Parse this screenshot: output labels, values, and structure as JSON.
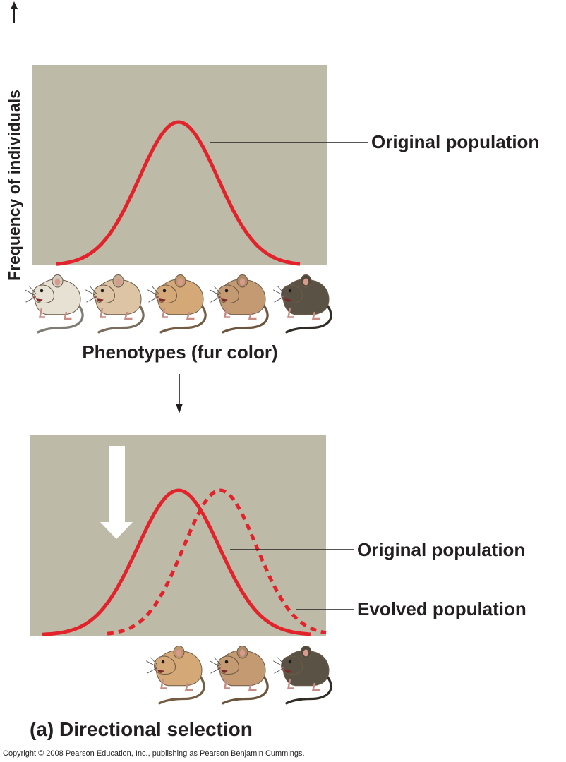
{
  "figure": {
    "y_axis_label": "Frequency of individuals",
    "x_axis_label": "Phenotypes (fur color)",
    "top_panel": {
      "curve_label": "Original population",
      "fur_colors": [
        "#e6e1d3",
        "#dcc4a5",
        "#d5a878",
        "#c49a72",
        "#595245"
      ]
    },
    "bottom_panel": {
      "original_label": "Original population",
      "evolved_label": "Evolved population",
      "fur_colors": [
        "#d5a878",
        "#c49a72",
        "#595245"
      ]
    },
    "caption": "(a) Directional selection",
    "copyright": "Copyright © 2008 Pearson Education, Inc., publishing as Pearson Benjamin Cummings.",
    "colors": {
      "panel": "#bebaa8",
      "curve": "#e3232b",
      "ink": "#231f20",
      "arrow": "#ffffff"
    }
  }
}
